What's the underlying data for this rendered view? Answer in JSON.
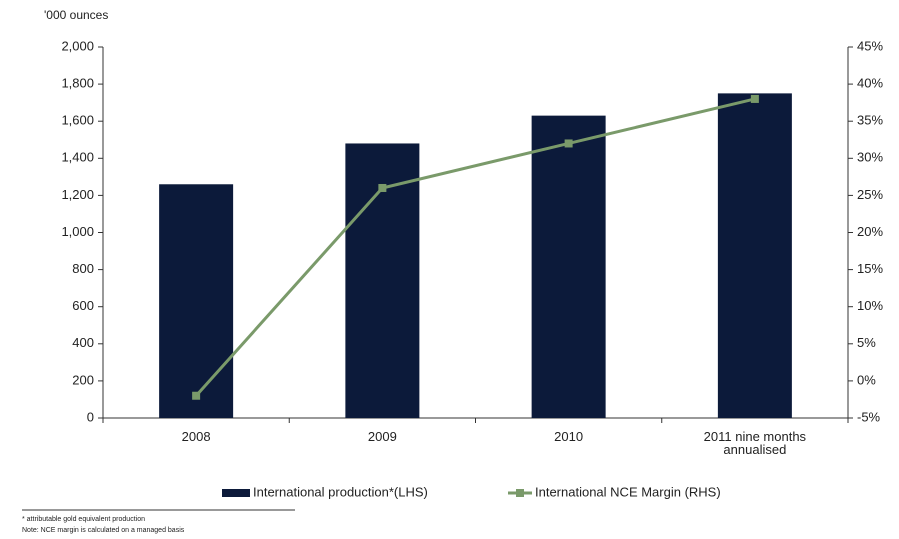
{
  "chart_data": {
    "type": "bar_line",
    "y_axis_label": "'000 ounces",
    "categories": [
      "2008",
      "2009",
      "2010",
      "2011 nine months annualised"
    ],
    "series": [
      {
        "name": "International production*(LHS)",
        "color": "#0c1a3a",
        "type": "bar",
        "values": [
          1260,
          1480,
          1630,
          1750
        ]
      },
      {
        "name": "International NCE Margin (RHS)",
        "color": "#7a9a6a",
        "type": "line",
        "axis": "y2",
        "values": [
          -2,
          26,
          32,
          38
        ]
      }
    ],
    "ylim": [
      0,
      2000
    ],
    "yticks": [
      0,
      200,
      400,
      600,
      800,
      {
        "value": 1000,
        "label": "1,000"
      },
      {
        "value": 1200,
        "label": "1,200"
      },
      {
        "value": 1400,
        "label": "1,400"
      },
      {
        "value": 1600,
        "label": "1,600"
      },
      {
        "value": 1800,
        "label": "1,800"
      },
      {
        "value": 2000,
        "label": "2,000"
      }
    ],
    "y2lim": [
      -5,
      45
    ],
    "y2ticks": [
      {
        "value": -5,
        "label": "-5%"
      },
      {
        "value": 0,
        "label": "0%"
      },
      {
        "value": 5,
        "label": "5%"
      },
      {
        "value": 10,
        "label": "10%"
      },
      {
        "value": 15,
        "label": "15%"
      },
      {
        "value": 20,
        "label": "20%"
      },
      {
        "value": 25,
        "label": "25%"
      },
      {
        "value": 30,
        "label": "30%"
      },
      {
        "value": 35,
        "label": "35%"
      },
      {
        "value": 40,
        "label": "40%"
      },
      {
        "value": 45,
        "label": "45%"
      }
    ],
    "footnotes": [
      "* attributable gold equivalent production",
      "Note: NCE margin is calculated on a managed basis"
    ]
  }
}
